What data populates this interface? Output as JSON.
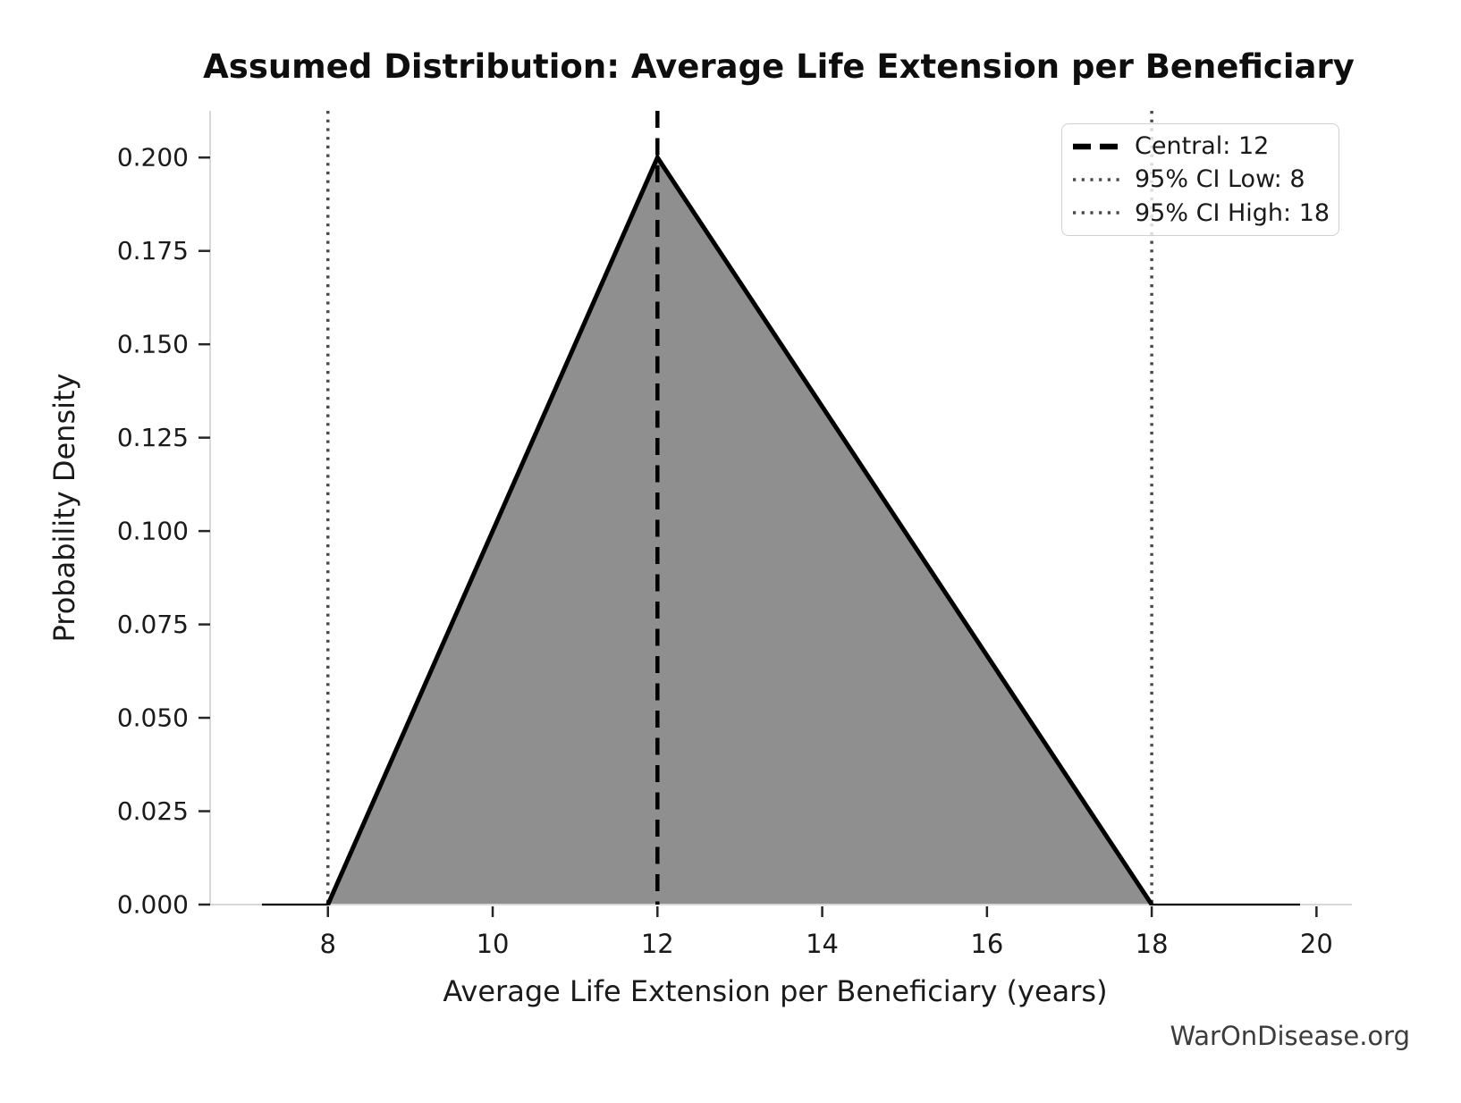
{
  "figure": {
    "title": "Assumed Distribution: Average Life Extension per Beneficiary",
    "watermark": "WarOnDisease.org"
  },
  "chart_data": {
    "type": "area",
    "title": "Assumed Distribution: Average Life Extension per Beneficiary",
    "xlabel": "Average Life Extension per Beneficiary (years)",
    "ylabel": "Probability Density",
    "distribution": "triangular",
    "triangle": {
      "low": 8,
      "mode": 12,
      "high": 18,
      "peak_density": 0.2
    },
    "series": [
      {
        "name": "pdf",
        "x": [
          7.2,
          8,
          12,
          18,
          19.8
        ],
        "y": [
          0,
          0,
          0.2,
          0,
          0
        ]
      }
    ],
    "vlines": [
      {
        "x": 12,
        "style": "dashed",
        "color": "#000000",
        "label": "Central: 12"
      },
      {
        "x": 8,
        "style": "dotted",
        "color": "#4a4a4a",
        "label": "95% CI Low: 8"
      },
      {
        "x": 18,
        "style": "dotted",
        "color": "#4a4a4a",
        "label": "95% CI High: 18"
      }
    ],
    "x_ticks": [
      {
        "v": 8,
        "label": "8"
      },
      {
        "v": 10,
        "label": "10"
      },
      {
        "v": 12,
        "label": "12"
      },
      {
        "v": 14,
        "label": "14"
      },
      {
        "v": 16,
        "label": "16"
      },
      {
        "v": 18,
        "label": "18"
      },
      {
        "v": 20,
        "label": "20"
      }
    ],
    "y_ticks": [
      {
        "v": 0.0,
        "label": "0.000"
      },
      {
        "v": 0.025,
        "label": "0.025"
      },
      {
        "v": 0.05,
        "label": "0.050"
      },
      {
        "v": 0.075,
        "label": "0.075"
      },
      {
        "v": 0.1,
        "label": "0.100"
      },
      {
        "v": 0.125,
        "label": "0.125"
      },
      {
        "v": 0.15,
        "label": "0.150"
      },
      {
        "v": 0.175,
        "label": "0.175"
      },
      {
        "v": 0.2,
        "label": "0.200"
      }
    ],
    "xlim": [
      6.57,
      20.43
    ],
    "ylim": [
      0,
      0.2125
    ],
    "grid": false,
    "legend_position": "upper right",
    "colors": {
      "fill": "#8f8f8f",
      "line": "#000000",
      "spine": "#d8d8d8",
      "tick": "#262626",
      "text": "#1a1a1a"
    }
  },
  "legend": {
    "entries": [
      {
        "label": "Central: 12",
        "style": "dashed"
      },
      {
        "label": "95% CI Low: 8",
        "style": "dotted"
      },
      {
        "label": "95% CI High: 18",
        "style": "dotted"
      }
    ]
  }
}
